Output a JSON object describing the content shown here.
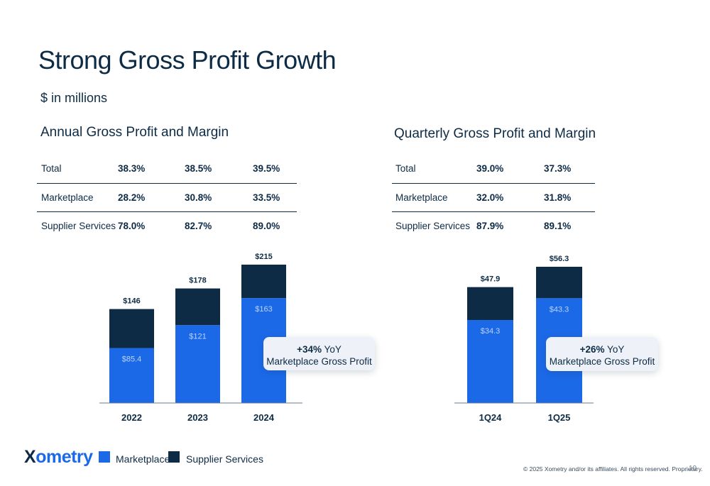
{
  "page": {
    "title": "Strong Gross Profit Growth",
    "subtitle": "$ in millions",
    "copyright": "© 2025 Xometry and/or its affiliates. All rights reserved. Proprietary.",
    "page_number": "10",
    "logo_text": "ometry",
    "logo_mark": "X"
  },
  "colors": {
    "marketplace": "#1c69e8",
    "supplier_services": "#0d2b45",
    "text": "#0d2b45"
  },
  "legend": [
    {
      "label": "Marketplace",
      "color": "#1c69e8"
    },
    {
      "label": "Supplier Services",
      "color": "#0d2b45"
    }
  ],
  "annual": {
    "panel_title": "Annual Gross Profit and Margin",
    "table": {
      "rows": [
        {
          "label": "Total",
          "values": [
            "38.3%",
            "38.5%",
            "39.5%"
          ]
        },
        {
          "label": "Marketplace",
          "values": [
            "28.2%",
            "30.8%",
            "33.5%"
          ]
        },
        {
          "label": "Supplier Services",
          "values": [
            "78.0%",
            "82.7%",
            "89.0%"
          ]
        }
      ]
    },
    "callout": {
      "pct": "+34%",
      "suffix": " YoY",
      "line2": "Marketplace Gross Profit"
    }
  },
  "quarterly": {
    "panel_title": "Quarterly Gross Profit and Margin",
    "table": {
      "rows": [
        {
          "label": "Total",
          "values": [
            "39.0%",
            "37.3%"
          ]
        },
        {
          "label": "Marketplace",
          "values": [
            "32.0%",
            "31.8%"
          ]
        },
        {
          "label": "Supplier Services",
          "values": [
            "87.9%",
            "89.1%"
          ]
        }
      ]
    },
    "callout": {
      "pct": "+26%",
      "suffix": " YoY",
      "line2": "Marketplace Gross Profit"
    }
  },
  "chart_data": [
    {
      "type": "bar",
      "stacked": true,
      "title": "Annual Gross Profit and Margin",
      "categories": [
        "2022",
        "2023",
        "2024"
      ],
      "series": [
        {
          "name": "Marketplace",
          "values": [
            85.4,
            121,
            163
          ],
          "labels": [
            "$85.4",
            "$121",
            "$163"
          ]
        },
        {
          "name": "Supplier Services",
          "values": [
            60.6,
            57,
            52
          ]
        }
      ],
      "totals": [
        146,
        178,
        215
      ],
      "total_labels": [
        "$146",
        "$178",
        "$215"
      ],
      "ylim": [
        0,
        215
      ],
      "grid": false,
      "legend": "bottom-left"
    },
    {
      "type": "bar",
      "stacked": true,
      "title": "Quarterly Gross Profit and Margin",
      "categories": [
        "1Q24",
        "1Q25"
      ],
      "series": [
        {
          "name": "Marketplace",
          "values": [
            34.3,
            43.3
          ],
          "labels": [
            "$34.3",
            "$43.3"
          ]
        },
        {
          "name": "Supplier Services",
          "values": [
            13.6,
            13.0
          ]
        }
      ],
      "totals": [
        47.9,
        56.3
      ],
      "total_labels": [
        "$47.9",
        "$56.3"
      ],
      "ylim": [
        0,
        56.3
      ],
      "grid": false,
      "legend": "bottom-left"
    }
  ]
}
